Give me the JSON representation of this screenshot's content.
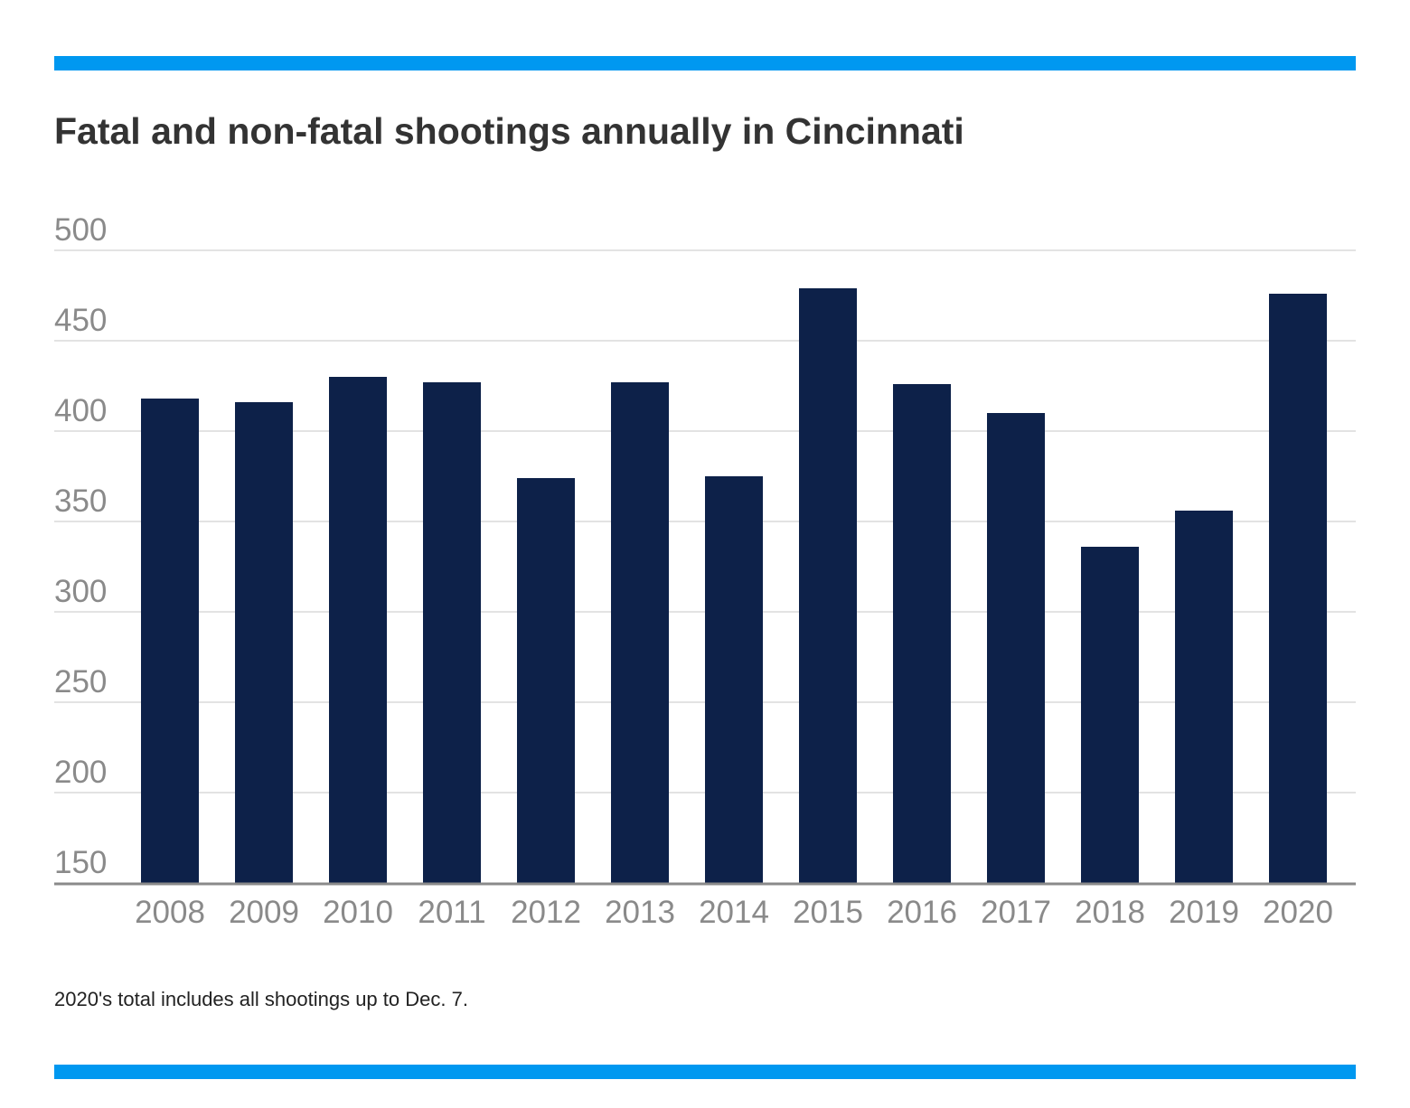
{
  "colors": {
    "accent": "#0098f0",
    "bar": "#0d2149",
    "grid": "#e3e3e3",
    "axis": "#8a8a8a",
    "tick_text": "#8a8a8a"
  },
  "header": {
    "title": "Fatal and non-fatal shootings annually in Cincinnati"
  },
  "footer": {
    "note": "2020's total includes all shootings up to Dec. 7."
  },
  "chart_data": {
    "type": "bar",
    "title": "Fatal and non-fatal shootings annually in Cincinnati",
    "xlabel": "",
    "ylabel": "",
    "categories": [
      "2008",
      "2009",
      "2010",
      "2011",
      "2012",
      "2013",
      "2014",
      "2015",
      "2016",
      "2017",
      "2018",
      "2019",
      "2020"
    ],
    "values": [
      418,
      416,
      430,
      427,
      374,
      427,
      375,
      479,
      426,
      410,
      336,
      356,
      476
    ],
    "ylim": [
      150,
      500
    ],
    "yticks": [
      150,
      200,
      250,
      300,
      350,
      400,
      450,
      500
    ],
    "grid": true,
    "legend": "none"
  }
}
